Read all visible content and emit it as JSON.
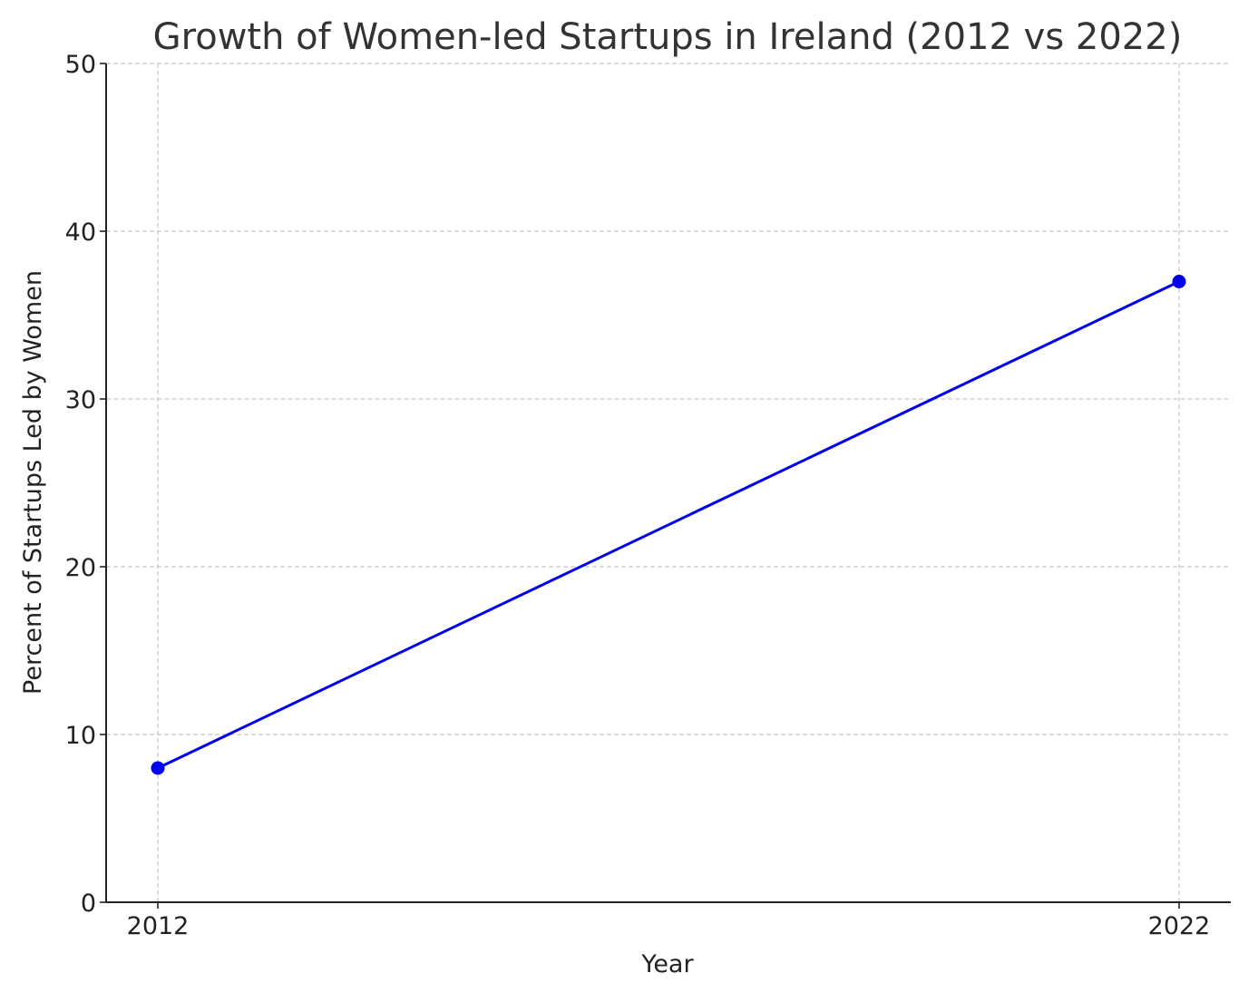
{
  "chart_data": {
    "type": "line",
    "title": "Growth of Women-led Startups in Ireland (2012 vs 2022)",
    "xlabel": "Year",
    "ylabel": "Percent of Startups Led by Women",
    "categories": [
      "2012",
      "2022"
    ],
    "y_ticks": [
      0,
      10,
      20,
      30,
      40,
      50
    ],
    "ylim": [
      0,
      50
    ],
    "grid": true,
    "series": [
      {
        "values": [
          8,
          37
        ],
        "color": "#0000ee",
        "marker": "circle"
      }
    ]
  }
}
